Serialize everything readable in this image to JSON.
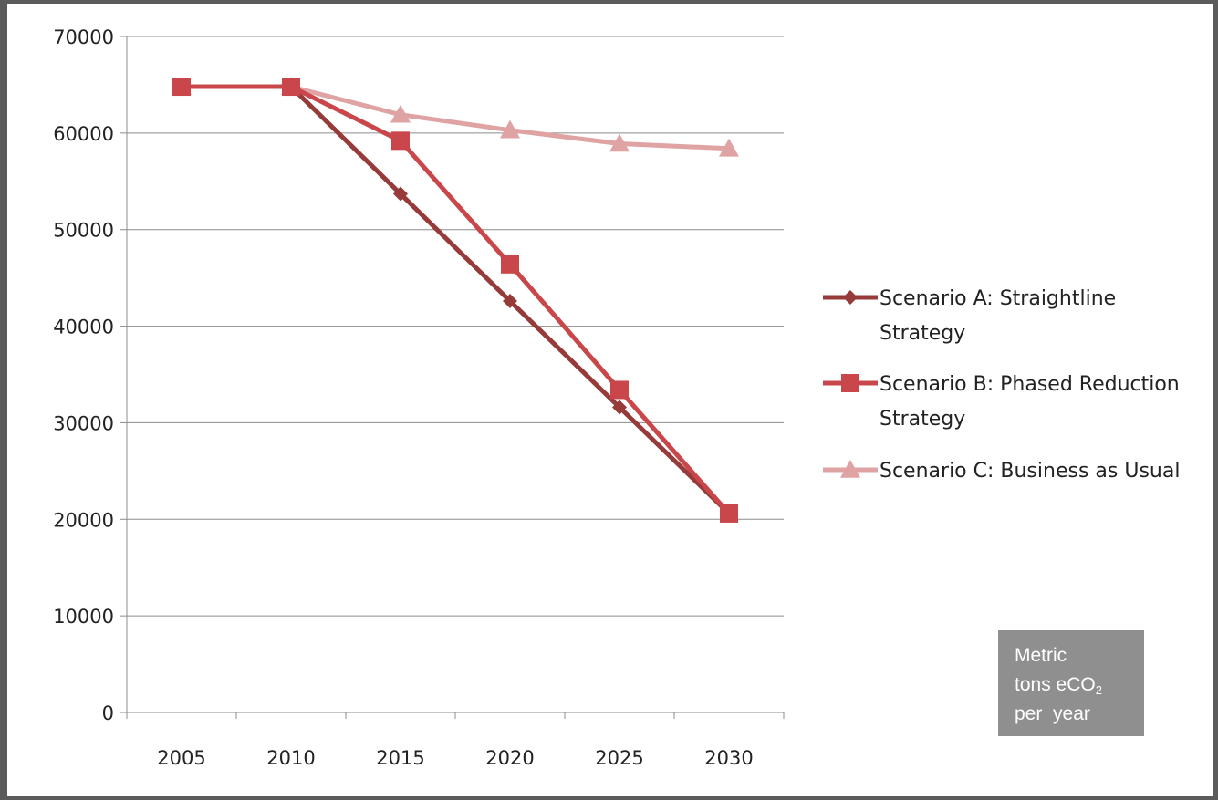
{
  "chart_data": {
    "type": "line",
    "categories": [
      "2005",
      "2010",
      "2015",
      "2020",
      "2025",
      "2030"
    ],
    "ylim": [
      0,
      70000
    ],
    "yticks": [
      0,
      10000,
      20000,
      30000,
      40000,
      50000,
      60000,
      70000
    ],
    "grid": true,
    "legend_position": "right",
    "series": [
      {
        "name": "Scenario A: Straightline Strategy",
        "legend_lines": [
          "Scenario A: Straightline",
          "Strategy"
        ],
        "values": [
          64800,
          64800,
          53700,
          42600,
          31600,
          20600
        ],
        "color": "#963a3a",
        "marker": "diamond"
      },
      {
        "name": "Scenario B: Phased Reduction Strategy",
        "legend_lines": [
          "Scenario B: Phased Reduction",
          "Strategy"
        ],
        "values": [
          64800,
          64800,
          59200,
          46400,
          33400,
          20600
        ],
        "color": "#c9474a",
        "marker": "square"
      },
      {
        "name": "Scenario C:  Business as Usual",
        "legend_lines": [
          "Scenario C:  Business as Usual"
        ],
        "values": [
          64800,
          64800,
          61900,
          60300,
          58900,
          58400
        ],
        "color": "#dfa3a3",
        "marker": "triangle"
      }
    ]
  },
  "unit_label": {
    "line1": "Metric",
    "line2_prefix": "tons eCO",
    "line2_sub": "2",
    "line3": "per  year"
  }
}
